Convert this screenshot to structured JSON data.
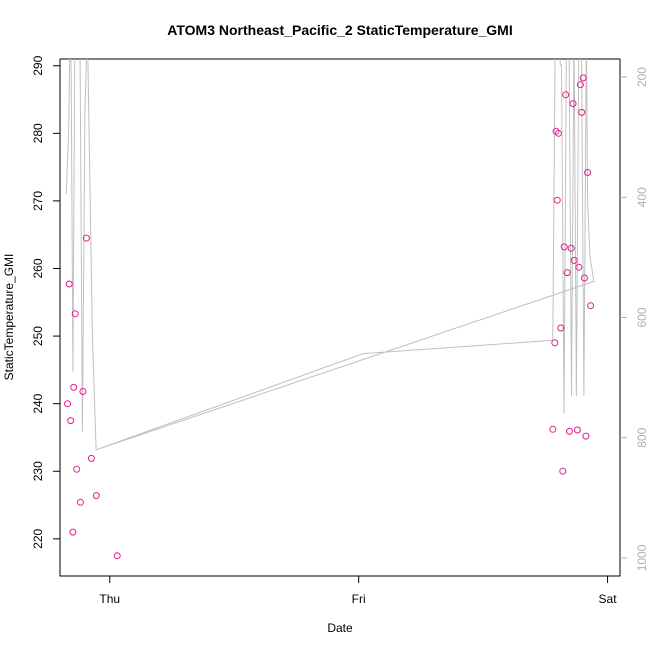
{
  "chart_data": {
    "type": "scatter",
    "title": "ATOM3 Northeast_Pacific_2 StaticTemperature_GMI",
    "xlabel": "Date",
    "ylabel": "StaticTemperature_GMI",
    "xlim": [
      -0.2,
      2.05
    ],
    "ylim": [
      214.5,
      291
    ],
    "x_ticks": [
      {
        "value": 0,
        "label": "Thu"
      },
      {
        "value": 1,
        "label": "Fri"
      },
      {
        "value": 2,
        "label": "Sat"
      }
    ],
    "y_ticks": [
      220,
      230,
      240,
      250,
      260,
      270,
      280,
      290
    ],
    "right_axis": {
      "ticks": [
        200,
        400,
        600,
        800,
        1000
      ],
      "lim": [
        1030,
        170
      ],
      "color": "#b0b0b0"
    },
    "point_color": "#e0208c",
    "line_color": "#c0c0c0",
    "grid": false,
    "legend": "none",
    "series": [
      {
        "type": "points",
        "points": [
          [
            -0.17,
            240.0
          ],
          [
            -0.163,
            257.7
          ],
          [
            -0.157,
            237.5
          ],
          [
            -0.148,
            221.0
          ],
          [
            -0.145,
            242.4
          ],
          [
            -0.139,
            253.3
          ],
          [
            -0.133,
            230.3
          ],
          [
            -0.118,
            225.4
          ],
          [
            -0.108,
            241.8
          ],
          [
            -0.094,
            264.5
          ],
          [
            -0.074,
            231.9
          ],
          [
            -0.054,
            226.4
          ],
          [
            0.03,
            217.5
          ],
          [
            1.78,
            236.2
          ],
          [
            1.788,
            249.0
          ],
          [
            1.793,
            280.3
          ],
          [
            1.798,
            270.1
          ],
          [
            1.803,
            280.0
          ],
          [
            1.812,
            251.2
          ],
          [
            1.82,
            230.0
          ],
          [
            1.826,
            263.2
          ],
          [
            1.832,
            285.7
          ],
          [
            1.838,
            259.4
          ],
          [
            1.847,
            235.9
          ],
          [
            1.854,
            263.0
          ],
          [
            1.861,
            284.4
          ],
          [
            1.866,
            261.2
          ],
          [
            1.879,
            236.1
          ],
          [
            1.885,
            260.2
          ],
          [
            1.891,
            287.2
          ],
          [
            1.896,
            283.1
          ],
          [
            1.902,
            288.2
          ],
          [
            1.907,
            258.6
          ],
          [
            1.913,
            235.2
          ],
          [
            1.92,
            274.2
          ],
          [
            1.932,
            254.5
          ]
        ]
      },
      {
        "type": "line",
        "points": [
          [
            -0.175,
            395
          ],
          [
            -0.165,
            290
          ],
          [
            -0.16,
            120
          ],
          [
            -0.155,
            200
          ],
          [
            -0.148,
            690
          ],
          [
            -0.14,
            120
          ],
          [
            -0.13,
            160
          ],
          [
            -0.12,
            120
          ],
          [
            -0.11,
            790
          ],
          [
            -0.1,
            260
          ],
          [
            -0.09,
            120
          ],
          [
            -0.07,
            630
          ],
          [
            -0.055,
            820
          ],
          [
            1.018,
            660
          ],
          [
            1.78,
            638
          ],
          [
            1.79,
            120
          ],
          [
            1.8,
            120
          ],
          [
            1.81,
            180
          ],
          [
            1.815,
            180
          ],
          [
            1.825,
            760
          ],
          [
            1.835,
            120
          ],
          [
            1.845,
            120
          ],
          [
            1.855,
            730
          ],
          [
            1.865,
            120
          ],
          [
            1.875,
            730
          ],
          [
            1.885,
            120
          ],
          [
            1.895,
            120
          ],
          [
            1.905,
            730
          ],
          [
            1.915,
            120
          ],
          [
            1.92,
            410
          ],
          [
            1.93,
            500
          ],
          [
            1.945,
            540
          ],
          [
            -0.055,
            820
          ]
        ]
      }
    ]
  }
}
